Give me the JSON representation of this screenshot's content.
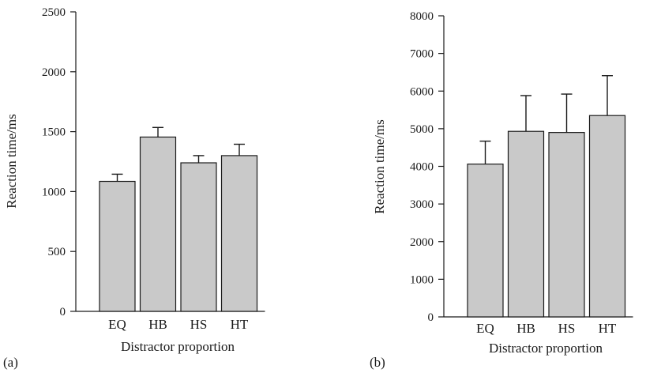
{
  "colors": {
    "bar_fill": "#c9c9c9",
    "ink": "#1a1a1a",
    "background": "#ffffff"
  },
  "chart_data": [
    {
      "type": "bar",
      "panel_label": "(a)",
      "title": "",
      "xlabel": "Distractor proportion",
      "ylabel": "Reaction time/ms",
      "categories": [
        "EQ",
        "HB",
        "HS",
        "HT"
      ],
      "values": [
        1085,
        1455,
        1240,
        1300
      ],
      "error_upper": [
        1145,
        1535,
        1300,
        1395
      ],
      "ylim": [
        0,
        2500
      ],
      "yticks": [
        0,
        500,
        1000,
        1500,
        2000,
        2500
      ],
      "ytick_labels": [
        "0",
        "500",
        "1000",
        "1500",
        "2000",
        "2500"
      ],
      "grid": false,
      "legend": "none"
    },
    {
      "type": "bar",
      "panel_label": "(b)",
      "title": "",
      "xlabel": "Distractor proportion",
      "ylabel": "Reaction time/ms",
      "categories": [
        "EQ",
        "HB",
        "HS",
        "HT"
      ],
      "values": [
        4060,
        4930,
        4900,
        5350
      ],
      "error_upper": [
        4670,
        5880,
        5920,
        6410
      ],
      "ylim": [
        0,
        8000
      ],
      "yticks": [
        0,
        1000,
        2000,
        3000,
        4000,
        5000,
        6000,
        7000,
        8000
      ],
      "ytick_labels": [
        "0",
        "1000",
        "2000",
        "3000",
        "4000",
        "5000",
        "6000",
        "7000",
        "8000"
      ],
      "grid": false,
      "legend": "none"
    }
  ]
}
